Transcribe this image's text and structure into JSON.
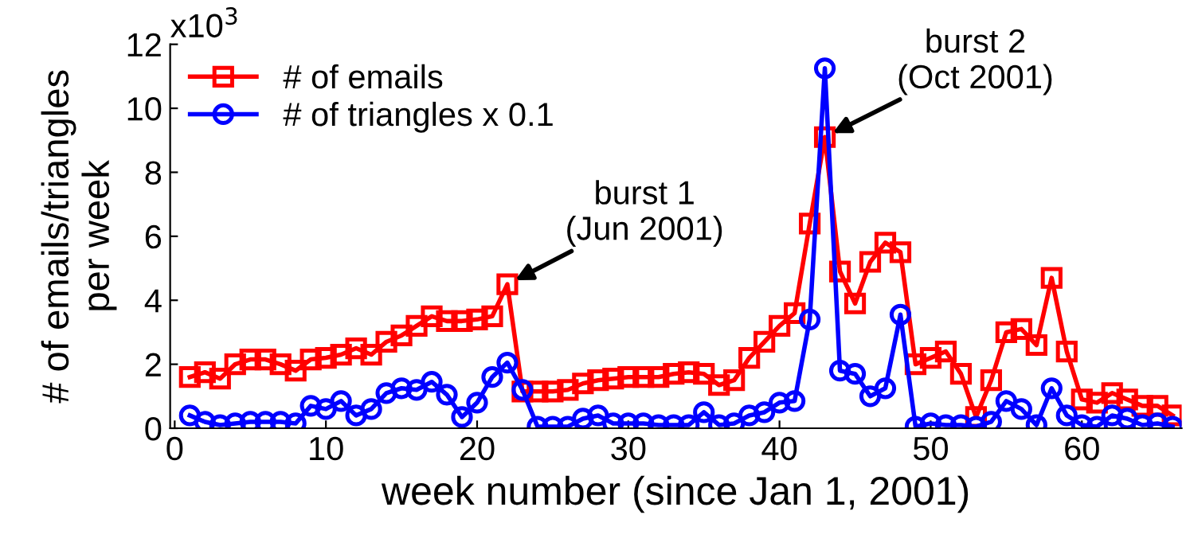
{
  "chart_data": {
    "type": "line",
    "xlabel": "week number (since Jan 1, 2001)",
    "ylabel": "# of emails/triangles\nper week",
    "x": [
      1,
      2,
      3,
      4,
      5,
      6,
      7,
      8,
      9,
      10,
      11,
      12,
      13,
      14,
      15,
      16,
      17,
      18,
      19,
      20,
      21,
      22,
      23,
      24,
      25,
      26,
      27,
      28,
      29,
      30,
      31,
      32,
      33,
      34,
      35,
      36,
      37,
      38,
      39,
      40,
      41,
      42,
      43,
      44,
      45,
      46,
      47,
      48,
      49,
      50,
      51,
      52,
      53,
      54,
      55,
      56,
      57,
      58,
      59,
      60,
      61,
      62,
      63,
      64,
      65,
      66
    ],
    "series": [
      {
        "name": "# of emails",
        "color": "#ff0000",
        "marker": "square",
        "values": [
          1.6,
          1.75,
          1.55,
          2.0,
          2.15,
          2.15,
          2.0,
          1.8,
          2.15,
          2.2,
          2.3,
          2.5,
          2.3,
          2.7,
          2.9,
          3.2,
          3.5,
          3.35,
          3.35,
          3.4,
          3.5,
          4.5,
          1.15,
          1.15,
          1.15,
          1.2,
          1.4,
          1.5,
          1.55,
          1.6,
          1.6,
          1.6,
          1.7,
          1.75,
          1.7,
          1.35,
          1.5,
          2.2,
          2.7,
          3.2,
          3.6,
          6.4,
          9.1,
          4.9,
          3.9,
          5.2,
          5.8,
          5.5,
          2.0,
          2.2,
          2.4,
          1.7,
          0.35,
          1.5,
          3.0,
          3.1,
          2.6,
          4.7,
          2.4,
          0.9,
          0.8,
          1.1,
          0.9,
          0.7,
          0.7,
          0.4
        ]
      },
      {
        "name": "# of triangles x 0.1",
        "color": "#0000ff",
        "marker": "circle",
        "values": [
          0.4,
          0.2,
          0.1,
          0.15,
          0.2,
          0.2,
          0.2,
          0.15,
          0.7,
          0.6,
          0.85,
          0.4,
          0.6,
          1.1,
          1.25,
          1.2,
          1.45,
          1.05,
          0.35,
          0.8,
          1.6,
          2.05,
          1.2,
          0.05,
          0.05,
          0.05,
          0.3,
          0.4,
          0.15,
          0.15,
          0.15,
          0.1,
          0.1,
          0.1,
          0.5,
          0.1,
          0.15,
          0.4,
          0.5,
          0.8,
          0.85,
          3.4,
          11.25,
          1.8,
          1.7,
          1.0,
          1.25,
          3.55,
          0.05,
          0.15,
          0.1,
          0.1,
          0.05,
          0.2,
          0.85,
          0.6,
          0.1,
          1.25,
          0.4,
          0.1,
          0.05,
          0.4,
          0.3,
          0.1,
          0.15,
          0.05
        ]
      }
    ],
    "xlim": [
      -0.3,
      66.6
    ],
    "xticks": [
      0,
      10,
      20,
      30,
      40,
      50,
      60
    ],
    "ylim": [
      0,
      12
    ],
    "yticks": [
      0,
      2,
      4,
      6,
      8,
      10,
      12
    ],
    "annotations": [
      "x10$^{3}$",
      {
        "text": "burst 1\n(Jun 2001)",
        "x": 22,
        "y": 4.5
      },
      {
        "text": "burst 2\n(Oct 2001)",
        "x": 43,
        "y": 9.1
      }
    ],
    "legend": "top left",
    "grid": false,
    "line_style": "solid"
  }
}
